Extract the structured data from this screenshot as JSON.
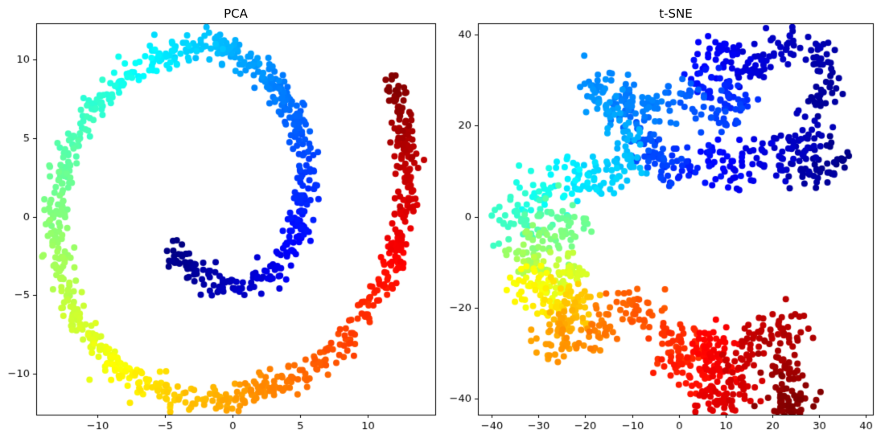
{
  "figure": {
    "background": "#ffffff",
    "spine_color": "#000000",
    "tick_color": "#000000",
    "text_color": "#000000"
  },
  "colormap": {
    "name": "jet",
    "stops": [
      [
        0.0,
        "#000080"
      ],
      [
        0.125,
        "#0000ff"
      ],
      [
        0.375,
        "#00ffff"
      ],
      [
        0.625,
        "#ffff00"
      ],
      [
        0.875,
        "#ff0000"
      ],
      [
        1.0,
        "#800000"
      ]
    ]
  },
  "chart_data": [
    {
      "type": "scatter",
      "title": "PCA",
      "xlabel": "",
      "ylabel": "",
      "xlim": [
        -14.5,
        15.0
      ],
      "ylim": [
        -12.6,
        12.3
      ],
      "xticks": [
        {
          "v": -10,
          "label": "−10"
        },
        {
          "v": -5,
          "label": "−5"
        },
        {
          "v": 0,
          "label": "0"
        },
        {
          "v": 5,
          "label": "5"
        },
        {
          "v": 10,
          "label": "10"
        }
      ],
      "yticks": [
        {
          "v": -10,
          "label": "−10"
        },
        {
          "v": -5,
          "label": "−5"
        },
        {
          "v": 0,
          "label": "0"
        },
        {
          "v": 5,
          "label": "5"
        },
        {
          "v": 10,
          "label": "10"
        }
      ],
      "marker_size_px": 8,
      "seed": 12345,
      "description": "2D spiral (swiss-roll projection), colored along manifold parameter with jet colormap, dark blue at inner end to dark red at outer end",
      "segments": [
        {
          "n": 1150,
          "jitter": 0.45,
          "points": [
            [
              -4.6,
              -2.0,
              0.0
            ],
            [
              -2.5,
              -3.8,
              0.03
            ],
            [
              0.0,
              -4.6,
              0.061
            ],
            [
              2.6,
              -3.8,
              0.091
            ],
            [
              4.4,
              -1.9,
              0.121
            ],
            [
              5.2,
              0.5,
              0.152
            ],
            [
              5.5,
              3.0,
              0.182
            ],
            [
              5.0,
              5.5,
              0.212
            ],
            [
              3.7,
              7.8,
              0.242
            ],
            [
              1.8,
              9.6,
              0.273
            ],
            [
              -0.6,
              10.7,
              0.303
            ],
            [
              -3.2,
              10.8,
              0.333
            ],
            [
              -5.8,
              10.1,
              0.364
            ],
            [
              -8.2,
              8.7,
              0.394
            ],
            [
              -10.3,
              6.8,
              0.424
            ],
            [
              -11.9,
              4.4,
              0.455
            ],
            [
              -12.9,
              1.8,
              0.485
            ],
            [
              -13.2,
              -1.0,
              0.515
            ],
            [
              -12.7,
              -3.8,
              0.545
            ],
            [
              -11.5,
              -6.4,
              0.576
            ],
            [
              -9.7,
              -8.7,
              0.606
            ],
            [
              -7.4,
              -10.4,
              0.636
            ],
            [
              -4.7,
              -11.4,
              0.667
            ],
            [
              -1.8,
              -11.7,
              0.697
            ],
            [
              1.2,
              -11.3,
              0.727
            ],
            [
              4.1,
              -10.4,
              0.758
            ],
            [
              6.8,
              -9.0,
              0.788
            ],
            [
              9.1,
              -7.1,
              0.818
            ],
            [
              10.9,
              -4.8,
              0.848
            ],
            [
              12.2,
              -2.2,
              0.879
            ],
            [
              12.9,
              0.6,
              0.909
            ],
            [
              13.1,
              3.4,
              0.939
            ],
            [
              12.6,
              6.2,
              0.97
            ],
            [
              11.6,
              8.7,
              1.0
            ]
          ]
        }
      ]
    },
    {
      "type": "scatter",
      "title": "t-SNE",
      "xlabel": "",
      "ylabel": "",
      "xlim": [
        -43.0,
        41.6
      ],
      "ylim": [
        -43.5,
        42.5
      ],
      "xticks": [
        {
          "v": -40,
          "label": "−40"
        },
        {
          "v": -30,
          "label": "−30"
        },
        {
          "v": -20,
          "label": "−20"
        },
        {
          "v": -10,
          "label": "−10"
        },
        {
          "v": 0,
          "label": "0"
        },
        {
          "v": 10,
          "label": "10"
        },
        {
          "v": 20,
          "label": "20"
        },
        {
          "v": 30,
          "label": "30"
        },
        {
          "v": 40,
          "label": "40"
        }
      ],
      "yticks": [
        {
          "v": -40,
          "label": "−40"
        },
        {
          "v": -20,
          "label": "−20"
        },
        {
          "v": 0,
          "label": "0"
        },
        {
          "v": 20,
          "label": "20"
        },
        {
          "v": 40,
          "label": "40"
        }
      ],
      "marker_size_px": 8,
      "seed": 99991,
      "description": "t-SNE embedding of the same manifold: snaking band from dark blue (upper right) through cyan/green/yellow/orange (left) with a detached red/dark-red cluster at lower right",
      "segments": [
        {
          "n": 850,
          "jitter": 2.2,
          "points": [
            [
              36,
              9,
              0.0
            ],
            [
              32,
              14,
              0.015
            ],
            [
              29,
              7,
              0.03
            ],
            [
              26,
              12,
              0.045
            ],
            [
              30,
              18,
              0.055
            ],
            [
              24,
              16,
              0.065
            ],
            [
              20,
              10,
              0.08
            ],
            [
              16,
              13,
              0.095
            ],
            [
              12,
              9,
              0.11
            ],
            [
              8,
              13,
              0.13
            ],
            [
              3,
              10,
              0.15
            ],
            [
              -1,
              13,
              0.17
            ],
            [
              -4,
              10,
              0.185
            ],
            [
              -6,
              15,
              0.2
            ],
            [
              -9,
              20,
              0.22
            ],
            [
              -12,
              25,
              0.24
            ],
            [
              -16,
              28,
              0.255
            ],
            [
              -19,
              28,
              0.265
            ],
            [
              -15,
              24,
              0.28
            ],
            [
              -12,
              19,
              0.295
            ],
            [
              -11,
              13,
              0.31
            ],
            [
              -15,
              9,
              0.33
            ],
            [
              -19,
              6,
              0.345
            ],
            [
              -24,
              9,
              0.36
            ],
            [
              -27,
              4,
              0.385
            ],
            [
              -32,
              7,
              0.4
            ],
            [
              -35,
              3,
              0.42
            ],
            [
              -36,
              -1,
              0.435
            ],
            [
              -31,
              -2,
              0.45
            ],
            [
              -26,
              0,
              0.465
            ],
            [
              -22,
              -3,
              0.485
            ],
            [
              -26,
              -5,
              0.5
            ],
            [
              -31,
              -6,
              0.515
            ],
            [
              -34,
              -9,
              0.53
            ],
            [
              -30,
              -12,
              0.55
            ],
            [
              -25,
              -9,
              0.565
            ],
            [
              -22,
              -13,
              0.585
            ],
            [
              -26,
              -15,
              0.6
            ],
            [
              -30,
              -17,
              0.615
            ],
            [
              -33,
              -14,
              0.625
            ],
            [
              -29,
              -19,
              0.645
            ],
            [
              -24,
              -17,
              0.66
            ],
            [
              -20,
              -20,
              0.68
            ],
            [
              -24,
              -23,
              0.7
            ],
            [
              -28,
              -26,
              0.715
            ],
            [
              -23,
              -28,
              0.73
            ],
            [
              -18,
              -26,
              0.75
            ],
            [
              -14,
              -22,
              0.77
            ],
            [
              -9,
              -19,
              0.785
            ],
            [
              -6,
              -22,
              0.8
            ]
          ]
        },
        {
          "n": 280,
          "jitter": 2.2,
          "points": [
            [
              28,
              24,
              0.02
            ],
            [
              33,
              30,
              0.03
            ],
            [
              30,
              36,
              0.045
            ],
            [
              25,
              39,
              0.055
            ],
            [
              20,
              36,
              0.07
            ],
            [
              15,
              32,
              0.09
            ],
            [
              11,
              35,
              0.105
            ],
            [
              7,
              36,
              0.115
            ],
            [
              3,
              31,
              0.135
            ],
            [
              8,
              28,
              0.155
            ],
            [
              13,
              26,
              0.17
            ],
            [
              9,
              21,
              0.19
            ],
            [
              3,
              24,
              0.21
            ],
            [
              -2,
              27,
              0.23
            ],
            [
              -6,
              23,
              0.245
            ],
            [
              -10,
              27,
              0.26
            ]
          ]
        },
        {
          "n": 380,
          "jitter": 2.2,
          "points": [
            [
              -3,
              -28,
              0.82
            ],
            [
              1,
              -26,
              0.83
            ],
            [
              3,
              -30,
              0.84
            ],
            [
              -1,
              -33,
              0.85
            ],
            [
              3,
              -36,
              0.858
            ],
            [
              7,
              -32,
              0.866
            ],
            [
              6,
              -27,
              0.874
            ],
            [
              10,
              -29,
              0.882
            ],
            [
              8,
              -36,
              0.89
            ],
            [
              5,
              -41,
              0.898
            ],
            [
              10,
              -42,
              0.906
            ],
            [
              14,
              -39,
              0.914
            ],
            [
              12,
              -33,
              0.922
            ],
            [
              15,
              -27,
              0.93
            ],
            [
              19,
              -25,
              0.938
            ],
            [
              23,
              -24,
              0.946
            ],
            [
              26,
              -27,
              0.954
            ],
            [
              21,
              -31,
              0.962
            ],
            [
              25,
              -34,
              0.97
            ],
            [
              20,
              -38,
              0.978
            ],
            [
              25,
              -40,
              0.986
            ],
            [
              21,
              -42,
              0.993
            ],
            [
              27,
              -42,
              1.0
            ]
          ]
        }
      ]
    }
  ]
}
